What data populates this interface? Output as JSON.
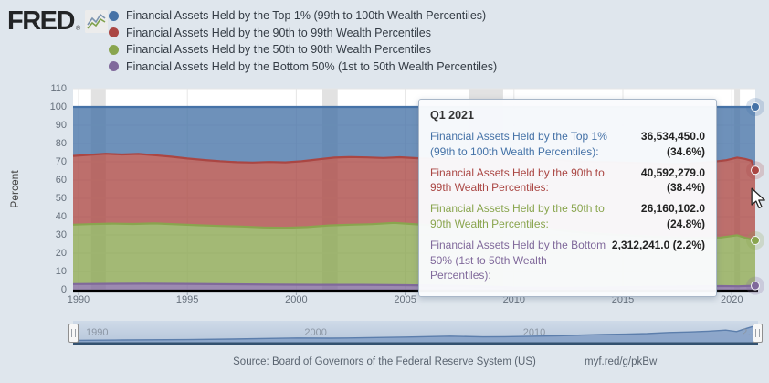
{
  "brand": {
    "logo_text": "FRED",
    "reg_mark": "®"
  },
  "legend": {
    "items": [
      {
        "label": "Financial Assets Held by the Top 1% (99th to 100th Wealth Percentiles)",
        "color": "#4572a7"
      },
      {
        "label": "Financial Assets Held by the 90th to 99th Wealth Percentiles",
        "color": "#aa4643"
      },
      {
        "label": "Financial Assets Held by the 50th to 90th Wealth Percentiles",
        "color": "#89a54e"
      },
      {
        "label": "Financial Assets Held by the Bottom 50% (1st to 50th Wealth Percentiles)",
        "color": "#80699b"
      }
    ]
  },
  "tooltip": {
    "title": "Q1 2021",
    "rows": [
      {
        "label": "Financial Assets Held by the Top 1% (99th to 100th Wealth Percentiles):",
        "value": "36,534,450.0 (34.6%)",
        "color": "#4572a7"
      },
      {
        "label": "Financial Assets Held by the 90th to 99th Wealth Percentiles:",
        "value": "40,592,279.0 (38.4%)",
        "color": "#aa4643"
      },
      {
        "label": "Financial Assets Held by the 50th to 90th Wealth Percentiles:",
        "value": "26,160,102.0 (24.8%)",
        "color": "#89a54e"
      },
      {
        "label": "Financial Assets Held by the Bottom 50% (1st to 50th Wealth Percentiles):",
        "value": "2,312,241.0 (2.2%)",
        "color": "#80699b"
      }
    ]
  },
  "footer": {
    "source": "Source: Board of Governors of the Federal Reserve System (US)",
    "link": "myf.red/g/pkBw"
  },
  "chart_data": {
    "type": "area",
    "stacking": "percent",
    "ylabel": "Percent",
    "ylim": [
      0,
      110
    ],
    "y_ticks": [
      0,
      10,
      20,
      30,
      40,
      50,
      60,
      70,
      80,
      90,
      100,
      110
    ],
    "x_ticks": [
      1990,
      1995,
      2000,
      2005,
      2010,
      2015,
      2020
    ],
    "x_range": [
      1989.75,
      2021.08
    ],
    "grid": true,
    "recession_bands": [
      [
        1990.58,
        1991.25
      ],
      [
        2001.2,
        2001.9
      ],
      [
        2007.95,
        2009.5
      ],
      [
        2020.12,
        2020.37
      ]
    ],
    "hover_period": "Q1 2021",
    "series": [
      {
        "name": "Financial Assets Held by the Bottom 50% (1st to 50th Wealth Percentiles)",
        "color": "#80699b",
        "end_share_pct": 2.2,
        "end_value": "2,312,241.0",
        "points": [
          [
            1989.75,
            3.1
          ],
          [
            1991,
            3.2
          ],
          [
            1993,
            3.3
          ],
          [
            1995,
            3.2
          ],
          [
            1997,
            3.0
          ],
          [
            1999,
            2.8
          ],
          [
            2001,
            2.7
          ],
          [
            2003,
            2.7
          ],
          [
            2005,
            2.5
          ],
          [
            2007,
            2.2
          ],
          [
            2008.5,
            1.8
          ],
          [
            2010,
            1.2
          ],
          [
            2012,
            1.0
          ],
          [
            2014,
            1.2
          ],
          [
            2016,
            1.5
          ],
          [
            2018,
            1.8
          ],
          [
            2019.5,
            2.0
          ],
          [
            2020.3,
            1.9
          ],
          [
            2021.08,
            2.2
          ]
        ]
      },
      {
        "name": "Financial Assets Held by the 50th to 90th Wealth Percentiles",
        "color": "#89a54e",
        "end_share_pct": 27.0,
        "end_value": "26,160,102.0",
        "points": [
          [
            1989.75,
            35.6
          ],
          [
            1990.5,
            35.9
          ],
          [
            1991.5,
            36.2
          ],
          [
            1992.5,
            36.0
          ],
          [
            1993.5,
            36.3
          ],
          [
            1994.5,
            35.8
          ],
          [
            1995.5,
            35.3
          ],
          [
            1996.5,
            34.9
          ],
          [
            1997.5,
            34.6
          ],
          [
            1998.5,
            34.1
          ],
          [
            1999.5,
            33.9
          ],
          [
            2000.5,
            34.3
          ],
          [
            2001.5,
            35.2
          ],
          [
            2002.5,
            35.6
          ],
          [
            2003.5,
            35.9
          ],
          [
            2004.5,
            36.6
          ],
          [
            2005.5,
            35.8
          ],
          [
            2006.5,
            35.2
          ],
          [
            2007.5,
            34.8
          ],
          [
            2008.5,
            34.9
          ],
          [
            2009.25,
            36.0
          ],
          [
            2010.5,
            34.5
          ],
          [
            2011.5,
            33.5
          ],
          [
            2012.5,
            32.0
          ],
          [
            2013.5,
            31.0
          ],
          [
            2014.5,
            30.2
          ],
          [
            2015.5,
            29.6
          ],
          [
            2016.5,
            29.0
          ],
          [
            2017.5,
            28.6
          ],
          [
            2018.5,
            28.4
          ],
          [
            2019.5,
            28.6
          ],
          [
            2020.25,
            29.8
          ],
          [
            2020.75,
            28.0
          ],
          [
            2021.08,
            27.0
          ]
        ]
      },
      {
        "name": "Financial Assets Held by the 90th to 99th Wealth Percentiles",
        "color": "#aa4643",
        "end_share_pct": 65.4,
        "end_value": "40,592,279.0",
        "points": [
          [
            1989.75,
            73.2
          ],
          [
            1990.5,
            73.8
          ],
          [
            1991.25,
            74.4
          ],
          [
            1992,
            74.0
          ],
          [
            1992.75,
            74.3
          ],
          [
            1993.5,
            73.6
          ],
          [
            1994.25,
            72.8
          ],
          [
            1995,
            71.8
          ],
          [
            1995.75,
            71.0
          ],
          [
            1996.5,
            70.3
          ],
          [
            1997.25,
            69.8
          ],
          [
            1998,
            69.6
          ],
          [
            1998.75,
            69.9
          ],
          [
            1999.5,
            69.7
          ],
          [
            2000.25,
            70.3
          ],
          [
            2001,
            71.3
          ],
          [
            2001.75,
            72.3
          ],
          [
            2002.5,
            72.6
          ],
          [
            2003.25,
            72.4
          ],
          [
            2004,
            72.1
          ],
          [
            2004.75,
            72.5
          ],
          [
            2005.5,
            72.0
          ],
          [
            2006.25,
            71.6
          ],
          [
            2007,
            71.9
          ],
          [
            2007.75,
            71.5
          ],
          [
            2008.5,
            72.8
          ],
          [
            2009.25,
            74.0
          ],
          [
            2010,
            72.8
          ],
          [
            2011,
            72.2
          ],
          [
            2012,
            71.0
          ],
          [
            2013,
            70.0
          ],
          [
            2014,
            69.8
          ],
          [
            2015,
            69.6
          ],
          [
            2016,
            69.2
          ],
          [
            2017,
            68.8
          ],
          [
            2018,
            68.9
          ],
          [
            2019,
            69.8
          ],
          [
            2019.75,
            70.9
          ],
          [
            2020.25,
            72.3
          ],
          [
            2020.6,
            71.6
          ],
          [
            2020.9,
            70.6
          ],
          [
            2021.08,
            65.4
          ]
        ]
      },
      {
        "name": "Financial Assets Held by the Top 1% (99th to 100th Wealth Percentiles)",
        "color": "#4572a7",
        "end_share_pct": 100.0,
        "end_value": "36,534,450.0",
        "points": [
          [
            1989.75,
            100
          ],
          [
            2021.08,
            100
          ]
        ]
      }
    ],
    "end_markers": [
      {
        "color": "#4572a7",
        "value": 100
      },
      {
        "color": "#aa4643",
        "value": 65.4
      },
      {
        "color": "#89a54e",
        "value": 27.0
      },
      {
        "color": "#80699b",
        "value": 2.2
      }
    ],
    "minimap": {
      "x_labels": [
        {
          "label": "1990",
          "year": 1990
        },
        {
          "label": "2000",
          "year": 2000
        },
        {
          "label": "2010",
          "year": 2010
        },
        {
          "label": "2…",
          "year": 2020
        }
      ],
      "profile": [
        [
          1989.75,
          0.08
        ],
        [
          1992,
          0.1
        ],
        [
          1995,
          0.12
        ],
        [
          1997,
          0.15
        ],
        [
          1999,
          0.19
        ],
        [
          2000,
          0.21
        ],
        [
          2001.5,
          0.2
        ],
        [
          2003,
          0.22
        ],
        [
          2005,
          0.26
        ],
        [
          2007,
          0.31
        ],
        [
          2008.5,
          0.27
        ],
        [
          2009.5,
          0.28
        ],
        [
          2011,
          0.31
        ],
        [
          2012,
          0.33
        ],
        [
          2013,
          0.37
        ],
        [
          2014,
          0.4
        ],
        [
          2015,
          0.42
        ],
        [
          2016,
          0.45
        ],
        [
          2017,
          0.51
        ],
        [
          2018,
          0.54
        ],
        [
          2018.8,
          0.58
        ],
        [
          2019.6,
          0.64
        ],
        [
          2020.1,
          0.56
        ],
        [
          2020.4,
          0.68
        ],
        [
          2020.8,
          0.82
        ],
        [
          2021.08,
          0.95
        ]
      ]
    }
  }
}
